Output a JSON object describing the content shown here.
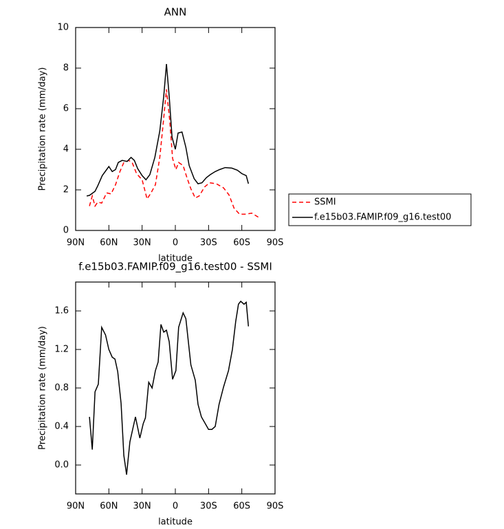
{
  "chart_data": [
    {
      "type": "line",
      "title": "ANN",
      "x_label": "latitude",
      "y_label": "Precipitation rate (mm/day)",
      "xlim": [
        90,
        -90
      ],
      "xticks": [
        {
          "value": 90,
          "label": "90N"
        },
        {
          "value": 60,
          "label": "60N"
        },
        {
          "value": 30,
          "label": "30N"
        },
        0,
        {
          "value": -30,
          "label": "30S"
        },
        {
          "value": -60,
          "label": "60S"
        },
        {
          "value": -90,
          "label": "90S"
        }
      ],
      "ylim": [
        0,
        10
      ],
      "yticks": [
        0,
        2,
        4,
        6,
        8,
        10
      ],
      "legend": "right",
      "series": [
        {
          "name": "SSMI",
          "color": "#ff0000",
          "dashed": true,
          "x": [
            77.5,
            75,
            72.5,
            70,
            66.5,
            62,
            58,
            54,
            50,
            46.5,
            42,
            39,
            35,
            30,
            25.5,
            22,
            18,
            14,
            11,
            8,
            5,
            2.5,
            -0.5,
            -3,
            -7,
            -10.5,
            -14,
            -18,
            -21.5,
            -26.5,
            -31,
            -37,
            -43.5,
            -48.5,
            -53,
            -58,
            -63,
            -69,
            -75
          ],
          "values": [
            1.2,
            1.7,
            1.2,
            1.4,
            1.35,
            1.85,
            1.8,
            2.25,
            2.9,
            3.35,
            3.45,
            3.35,
            2.8,
            2.5,
            1.55,
            1.85,
            2.25,
            3.6,
            5.25,
            6.95,
            5.4,
            3.55,
            3.0,
            3.35,
            3.2,
            2.6,
            2.05,
            1.6,
            1.7,
            2.15,
            2.35,
            2.3,
            2.1,
            1.75,
            1.1,
            0.8,
            0.8,
            0.85,
            0.65
          ]
        },
        {
          "name": "f.e15b03.FAMIP.f09_g16.test00",
          "color": "#000000",
          "dashed": false,
          "x": [
            80,
            77.5,
            72.5,
            70,
            66,
            62,
            60,
            57,
            54,
            51.5,
            48,
            43.5,
            40,
            37,
            34,
            30,
            26.5,
            23,
            18.5,
            14,
            10.5,
            8,
            5.5,
            3,
            0,
            -2.5,
            -6,
            -9.5,
            -12.5,
            -17,
            -20.5,
            -24,
            -28,
            -31.5,
            -36,
            -40,
            -45,
            -51,
            -56,
            -60,
            -64,
            -66
          ],
          "values": [
            1.7,
            1.73,
            1.93,
            2.2,
            2.7,
            3.0,
            3.15,
            2.9,
            3.0,
            3.35,
            3.45,
            3.4,
            3.6,
            3.45,
            3.05,
            2.7,
            2.5,
            2.75,
            3.6,
            4.9,
            6.6,
            8.2,
            6.6,
            4.6,
            4.0,
            4.8,
            4.85,
            4.1,
            3.2,
            2.55,
            2.3,
            2.35,
            2.6,
            2.75,
            2.9,
            3.0,
            3.1,
            3.07,
            2.97,
            2.8,
            2.7,
            2.3
          ]
        }
      ]
    },
    {
      "type": "line",
      "title": "f.e15b03.FAMIP.f09_g16.test00 - SSMI",
      "x_label": "latitude",
      "y_label": "Precipitation rate (mm/day)",
      "xlim": [
        90,
        -90
      ],
      "xticks": [
        {
          "value": 90,
          "label": "90N"
        },
        {
          "value": 60,
          "label": "60N"
        },
        {
          "value": 30,
          "label": "30N"
        },
        0,
        {
          "value": -30,
          "label": "30S"
        },
        {
          "value": -60,
          "label": "60S"
        },
        {
          "value": -90,
          "label": "90S"
        }
      ],
      "ylim": [
        -0.3,
        1.9
      ],
      "yticks": [
        {
          "value": 0,
          "label": "0.0"
        },
        0.4,
        0.8,
        1.2,
        1.6
      ],
      "color": "#000000",
      "x": [
        77.5,
        75,
        72.5,
        69.5,
        66.5,
        63,
        60,
        57,
        54.5,
        52,
        49,
        46.5,
        44,
        41,
        36,
        32,
        29,
        27,
        24,
        21,
        18,
        15.5,
        13,
        10.5,
        8,
        5.5,
        2.5,
        -0.5,
        -3,
        -7,
        -9.5,
        -14,
        -18,
        -20.5,
        -23.5,
        -27,
        -30,
        -33,
        -36,
        -39.5,
        -43.5,
        -48,
        -51.5,
        -54.5,
        -57,
        -59,
        -62,
        -64,
        -66
      ],
      "values": [
        0.5,
        0.16,
        0.76,
        0.84,
        1.43,
        1.35,
        1.2,
        1.12,
        1.1,
        0.97,
        0.64,
        0.1,
        -0.1,
        0.24,
        0.5,
        0.28,
        0.43,
        0.49,
        0.86,
        0.8,
        0.98,
        1.07,
        1.46,
        1.38,
        1.4,
        1.28,
        0.89,
        0.98,
        1.43,
        1.58,
        1.52,
        1.04,
        0.88,
        0.63,
        0.5,
        0.43,
        0.37,
        0.37,
        0.4,
        0.63,
        0.81,
        0.98,
        1.2,
        1.49,
        1.67,
        1.7,
        1.67,
        1.69,
        1.44
      ]
    }
  ]
}
